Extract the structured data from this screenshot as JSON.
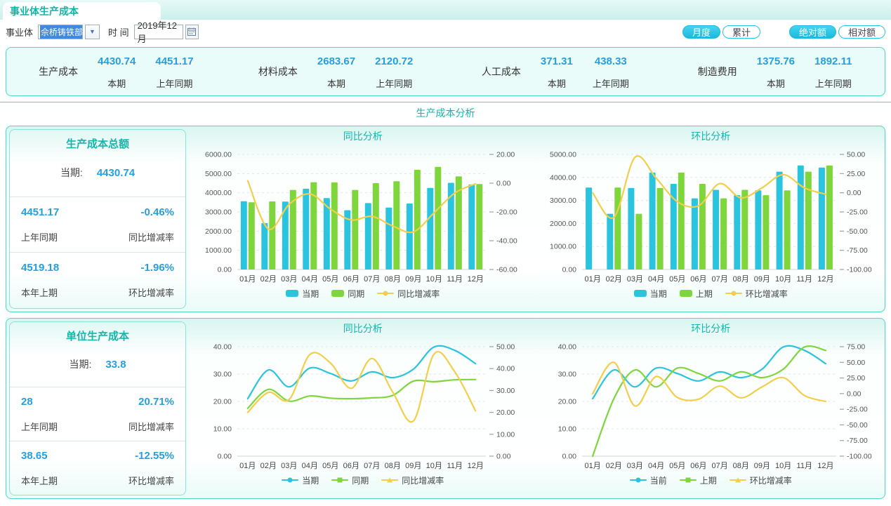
{
  "window": {
    "tab_title": "事业体生产成本"
  },
  "filters": {
    "entity_label": "事业体",
    "entity_value": "佘桥铸铁部",
    "time_label": "时 间",
    "time_value": "2019年12月",
    "period_buttons": [
      {
        "label": "月度",
        "active": true
      },
      {
        "label": "累计",
        "active": false
      }
    ],
    "amount_buttons": [
      {
        "label": "绝对额",
        "active": true
      },
      {
        "label": "相对额",
        "active": false
      }
    ]
  },
  "summary": {
    "period_label": "本期",
    "prev_label": "上年同期",
    "groups": [
      {
        "name": "生产成本",
        "current": "4430.74",
        "previous": "4451.17"
      },
      {
        "name": "材料成本",
        "current": "2683.67",
        "previous": "2120.72"
      },
      {
        "name": "人工成本",
        "current": "371.31",
        "previous": "438.33"
      },
      {
        "name": "制造费用",
        "current": "1375.76",
        "previous": "1892.11"
      }
    ]
  },
  "section_title": "生产成本分析",
  "blocks": [
    {
      "panel": {
        "title": "生产成本总额",
        "current_label": "当期:",
        "current_value": "4430.74",
        "rows": [
          {
            "value": "4451.17",
            "value_label": "上年同期",
            "rate": "-0.46%",
            "rate_label": "同比增减率"
          },
          {
            "value": "4519.18",
            "value_label": "本年上期",
            "rate": "-1.96%",
            "rate_label": "环比增减率"
          }
        ]
      }
    },
    {
      "panel": {
        "title": "单位生产成本",
        "current_label": "当期:",
        "current_value": "33.8",
        "rows": [
          {
            "value": "28",
            "value_label": "上年同期",
            "rate": "20.71%",
            "rate_label": "同比增减率"
          },
          {
            "value": "38.65",
            "value_label": "本年上期",
            "rate": "-12.55%",
            "rate_label": "环比增减率"
          }
        ]
      }
    }
  ],
  "colors": {
    "cyan": "#2bc4de",
    "green": "#7fd63c",
    "yellow": "#f1cf4b",
    "teal": "#17b5aa",
    "blue": "#279fdd"
  },
  "chart_data": [
    {
      "type": "bar",
      "title": "同比分析",
      "categories": [
        "01月",
        "02月",
        "03月",
        "04月",
        "05月",
        "06月",
        "07月",
        "08月",
        "09月",
        "10月",
        "11月",
        "12月"
      ],
      "series": [
        {
          "name": "当期",
          "type": "bar",
          "axis": "left",
          "color": "#2bc4de",
          "values": [
            3560,
            2420,
            3540,
            4210,
            3720,
            3090,
            3460,
            3230,
            3440,
            4250,
            4519.18,
            4430.74
          ]
        },
        {
          "name": "同期",
          "type": "bar",
          "axis": "left",
          "color": "#7fd63c",
          "values": [
            3500,
            3550,
            4150,
            4550,
            4540,
            4150,
            4500,
            4600,
            5200,
            5350,
            4850,
            4451.17
          ]
        },
        {
          "name": "同比增减率",
          "type": "line",
          "axis": "right",
          "color": "#f1cf4b",
          "values": [
            1.71,
            -31.83,
            -14.7,
            -7.47,
            -18.06,
            -25.54,
            -23.11,
            -29.78,
            -33.85,
            -20.56,
            -6.82,
            -0.46
          ]
        }
      ],
      "left_axis": {
        "min": 0,
        "max": 6000,
        "ticks": [
          0,
          1000,
          2000,
          3000,
          4000,
          5000,
          6000
        ]
      },
      "right_axis": {
        "min": -60,
        "max": 20,
        "ticks": [
          20,
          0,
          -20,
          -40,
          -60
        ]
      },
      "legend": [
        {
          "label": "当期",
          "marker": "rect",
          "color": "#2bc4de"
        },
        {
          "label": "同期",
          "marker": "rect",
          "color": "#7fd63c"
        },
        {
          "label": "同比增减率",
          "marker": "line-circle",
          "color": "#f1cf4b"
        }
      ]
    },
    {
      "type": "bar",
      "title": "环比分析",
      "categories": [
        "01月",
        "02月",
        "03月",
        "04月",
        "05月",
        "06月",
        "07月",
        "08月",
        "09月",
        "10月",
        "11月",
        "12月"
      ],
      "series": [
        {
          "name": "当期",
          "type": "bar",
          "axis": "left",
          "color": "#2bc4de",
          "values": [
            3560,
            2420,
            3540,
            4210,
            3720,
            3090,
            3460,
            3230,
            3440,
            4250,
            4519.18,
            4430.74
          ]
        },
        {
          "name": "上期",
          "type": "bar",
          "axis": "left",
          "color": "#7fd63c",
          "values": [
            0,
            3560,
            2420,
            3540,
            4210,
            3720,
            3090,
            3460,
            3230,
            3440,
            4250,
            4519.18
          ]
        },
        {
          "name": "环比增减率",
          "type": "line",
          "axis": "right",
          "color": "#f1cf4b",
          "values": [
            0,
            -32.02,
            46.28,
            18.93,
            -11.64,
            -16.94,
            11.97,
            -6.65,
            6.5,
            23.55,
            6.33,
            -1.96
          ]
        }
      ],
      "left_axis": {
        "min": 0,
        "max": 5000,
        "ticks": [
          0,
          1000,
          2000,
          3000,
          4000,
          5000
        ]
      },
      "right_axis": {
        "min": -100,
        "max": 50,
        "ticks": [
          50,
          25,
          0,
          -25,
          -50,
          -75,
          -100
        ]
      },
      "legend": [
        {
          "label": "当期",
          "marker": "rect",
          "color": "#2bc4de"
        },
        {
          "label": "上期",
          "marker": "rect",
          "color": "#7fd63c"
        },
        {
          "label": "环比增减率",
          "marker": "line-circle",
          "color": "#f1cf4b"
        }
      ]
    },
    {
      "type": "line",
      "title": "同比分析",
      "categories": [
        "01月",
        "02月",
        "03月",
        "04月",
        "05月",
        "06月",
        "07月",
        "08月",
        "09月",
        "10月",
        "11月",
        "12月"
      ],
      "series": [
        {
          "name": "当期",
          "type": "line",
          "axis": "left",
          "color": "#2bc4de",
          "values": [
            21,
            31.5,
            25.3,
            32.2,
            30.2,
            27.5,
            30.8,
            28.7,
            31.8,
            39.9,
            38.65,
            33.8
          ]
        },
        {
          "name": "同期",
          "type": "line",
          "axis": "left",
          "color": "#7fd63c",
          "values": [
            17.5,
            24.4,
            20.1,
            22,
            21.2,
            21,
            21.3,
            22.2,
            27.4,
            27.2,
            27.9,
            28
          ]
        },
        {
          "name": "同比增减率",
          "type": "line",
          "axis": "right",
          "color": "#f1cf4b",
          "values": [
            20,
            29.1,
            25.9,
            46.4,
            42.5,
            31,
            44.6,
            29.3,
            16.1,
            46.7,
            38.5,
            20.71
          ]
        }
      ],
      "left_axis": {
        "min": 0,
        "max": 40,
        "ticks": [
          0,
          10,
          20,
          30,
          40
        ]
      },
      "right_axis": {
        "min": 0,
        "max": 50,
        "ticks": [
          50,
          40,
          30,
          20,
          10,
          0
        ]
      },
      "legend": [
        {
          "label": "当期",
          "marker": "line-circle",
          "color": "#2bc4de"
        },
        {
          "label": "同期",
          "marker": "line-square",
          "color": "#7fd63c"
        },
        {
          "label": "同比增减率",
          "marker": "line-triangle",
          "color": "#f1cf4b"
        }
      ]
    },
    {
      "type": "line",
      "title": "环比分析",
      "categories": [
        "01月",
        "02月",
        "03月",
        "04月",
        "05月",
        "06月",
        "07月",
        "08月",
        "09月",
        "10月",
        "11月",
        "12月"
      ],
      "series": [
        {
          "name": "当前",
          "type": "line",
          "axis": "left",
          "color": "#2bc4de",
          "values": [
            21,
            31.5,
            25.3,
            32.2,
            30.2,
            27.5,
            30.8,
            28.7,
            31.8,
            39.9,
            38.65,
            33.8
          ]
        },
        {
          "name": "上期",
          "type": "line",
          "axis": "left",
          "color": "#7fd63c",
          "values": [
            0,
            21,
            31.5,
            25.3,
            32.2,
            30.2,
            27.5,
            30.8,
            28.7,
            31.8,
            39.9,
            38.65
          ]
        },
        {
          "name": "环比增减率",
          "type": "line",
          "axis": "right",
          "color": "#f1cf4b",
          "values": [
            0,
            50,
            -19.7,
            27.3,
            -6.2,
            -8.9,
            12,
            -6.8,
            10.8,
            25.5,
            -3.1,
            -12.55
          ]
        }
      ],
      "left_axis": {
        "min": 0,
        "max": 40,
        "ticks": [
          0,
          10,
          20,
          30,
          40
        ]
      },
      "right_axis": {
        "min": -100,
        "max": 75,
        "ticks": [
          75,
          50,
          25,
          0,
          -25,
          -50,
          -75,
          -100
        ]
      },
      "legend": [
        {
          "label": "当前",
          "marker": "line-circle",
          "color": "#2bc4de"
        },
        {
          "label": "上期",
          "marker": "line-square",
          "color": "#7fd63c"
        },
        {
          "label": "环比增减率",
          "marker": "line-triangle",
          "color": "#f1cf4b"
        }
      ]
    }
  ]
}
